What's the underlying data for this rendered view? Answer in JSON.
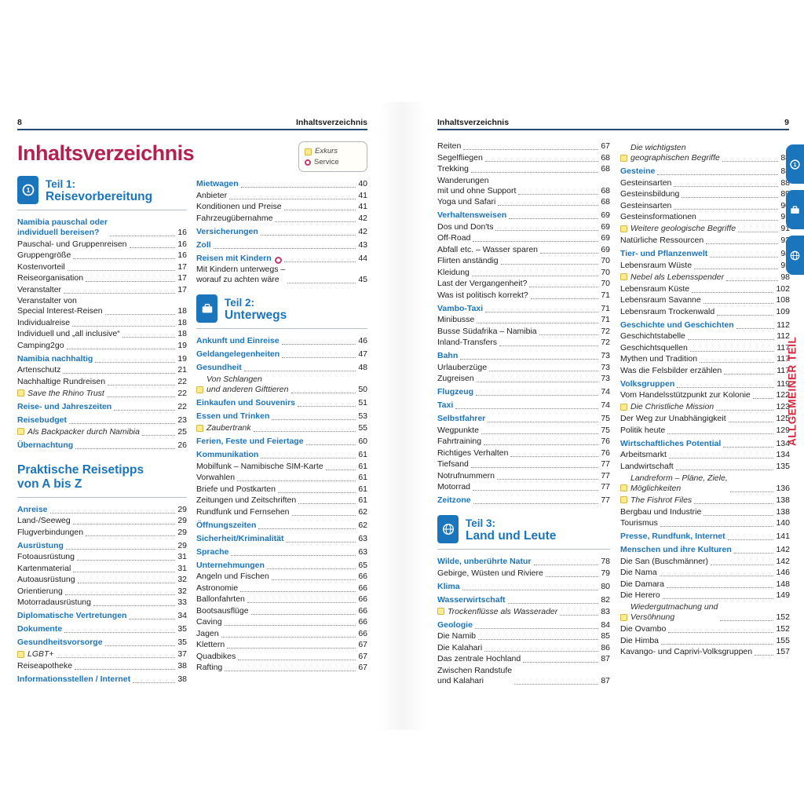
{
  "page_title": "Inhaltsverzeichnis",
  "colors": {
    "accent_blue": "#1b75bc",
    "title_red": "#b5214f",
    "edge_label_red": "#d02c3e",
    "excursus_yellow": "#fceb8f",
    "service_pink": "#c23a6e",
    "rule_navy": "#24486e"
  },
  "header_left": {
    "page_number": "8",
    "running_title": "Inhaltsverzeichnis"
  },
  "header_right": {
    "running_title": "Inhaltsverzeichnis",
    "page_number": "9"
  },
  "legend": {
    "exkurs_label": "Exkurs",
    "service_label": "Service"
  },
  "edge": {
    "vertical_label": "ALLGEMEINER TEIL",
    "tabs": [
      "part1-circle-1-icon",
      "part2-suitcase-icon",
      "part3-globe-icon"
    ]
  },
  "columns": {
    "left1": [
      {
        "type": "part",
        "icon": "circle-1",
        "label": "Teil 1:",
        "name": "Reisevorbereitung"
      },
      {
        "type": "head",
        "text": "Namibia pauschal oder\nindividuell bereisen?",
        "page": "16"
      },
      {
        "type": "sub",
        "text": "Pauschal- und Gruppenreisen",
        "page": "16"
      },
      {
        "type": "sub",
        "text": "Gruppengröße",
        "page": "16"
      },
      {
        "type": "sub",
        "text": "Kostenvorteil",
        "page": "17"
      },
      {
        "type": "sub",
        "text": "Reiseorganisation",
        "page": "17"
      },
      {
        "type": "sub",
        "text": "Veranstalter",
        "page": "17"
      },
      {
        "type": "sub",
        "text": "Veranstalter von\nSpecial Interest-Reisen",
        "page": "18"
      },
      {
        "type": "sub",
        "text": "Individualreise",
        "page": "18"
      },
      {
        "type": "sub",
        "text": "Individuell und „all inclusive“",
        "page": "18"
      },
      {
        "type": "sub",
        "text": "Camping2go",
        "page": "19"
      },
      {
        "type": "head",
        "text": "Namibia nachhaltig",
        "page": "19"
      },
      {
        "type": "sub",
        "text": "Artenschutz",
        "page": "21"
      },
      {
        "type": "sub",
        "text": "Nachhaltige Rundreisen",
        "page": "22"
      },
      {
        "type": "exk",
        "text": "Save the Rhino Trust",
        "page": "22"
      },
      {
        "type": "head",
        "text": "Reise- und Jahreszeiten",
        "page": "22"
      },
      {
        "type": "head",
        "text": "Reisebudget",
        "page": "23"
      },
      {
        "type": "exk",
        "text": "Als Backpacker durch Namibia",
        "page": "25"
      },
      {
        "type": "head",
        "text": "Übernachtung",
        "page": "26"
      },
      {
        "type": "section",
        "text": "Praktische Reisetipps\nvon A bis Z"
      },
      {
        "type": "head",
        "text": "Anreise",
        "page": "29"
      },
      {
        "type": "sub",
        "text": "Land-/Seeweg",
        "page": "29"
      },
      {
        "type": "sub",
        "text": "Flugverbindungen",
        "page": "29"
      },
      {
        "type": "head",
        "text": "Ausrüstung",
        "page": "29"
      },
      {
        "type": "sub",
        "text": "Fotoausrüstung",
        "page": "31"
      },
      {
        "type": "sub",
        "text": "Kartenmaterial",
        "page": "31"
      },
      {
        "type": "sub",
        "text": "Autoausrüstung",
        "page": "32"
      },
      {
        "type": "sub",
        "text": "Orientierung",
        "page": "32"
      },
      {
        "type": "sub",
        "text": "Motorradausrüstung",
        "page": "33"
      },
      {
        "type": "head",
        "text": "Diplomatische Vertretungen",
        "page": "34"
      },
      {
        "type": "head",
        "text": "Dokumente",
        "page": "35"
      },
      {
        "type": "head",
        "text": "Gesundheitsvorsorge",
        "page": "35"
      },
      {
        "type": "exk",
        "text": "LGBT+",
        "page": "37"
      },
      {
        "type": "sub",
        "text": "Reiseapotheke",
        "page": "38"
      },
      {
        "type": "head",
        "text": "Informationsstellen / Internet",
        "page": "38"
      }
    ],
    "left2": [
      {
        "type": "legend"
      },
      {
        "type": "head",
        "text": "Mietwagen",
        "page": "40"
      },
      {
        "type": "sub",
        "text": "Anbieter",
        "page": "41"
      },
      {
        "type": "sub",
        "text": "Konditionen und Preise",
        "page": "41"
      },
      {
        "type": "sub",
        "text": "Fahrzeugübernahme",
        "page": "42"
      },
      {
        "type": "head",
        "text": "Versicherungen",
        "page": "42"
      },
      {
        "type": "head",
        "text": "Zoll",
        "page": "43"
      },
      {
        "type": "head",
        "text": "Reisen mit Kindern",
        "page": "44",
        "icon": "service"
      },
      {
        "type": "sub",
        "text": "Mit Kindern unterwegs –\nworauf zu achten wäre",
        "page": "45"
      },
      {
        "type": "part",
        "icon": "suitcase",
        "label": "Teil 2:",
        "name": "Unterwegs"
      },
      {
        "type": "head",
        "text": "Ankunft und Einreise",
        "page": "46"
      },
      {
        "type": "head",
        "text": "Geldangelegenheiten",
        "page": "47"
      },
      {
        "type": "head",
        "text": "Gesundheit",
        "page": "48"
      },
      {
        "type": "exk",
        "text": "Von Schlangen\nund anderen Gifttieren",
        "page": "50"
      },
      {
        "type": "head",
        "text": "Einkaufen und Souvenirs",
        "page": "51"
      },
      {
        "type": "head",
        "text": "Essen und Trinken",
        "page": "53"
      },
      {
        "type": "exk",
        "text": "Zaubertrank",
        "page": "55"
      },
      {
        "type": "head",
        "text": "Ferien, Feste und Feiertage",
        "page": "60"
      },
      {
        "type": "head",
        "text": "Kommunikation",
        "page": "61"
      },
      {
        "type": "sub",
        "text": "Mobilfunk – Namibische SIM-Karte",
        "page": "61"
      },
      {
        "type": "sub",
        "text": "Vorwahlen",
        "page": "61"
      },
      {
        "type": "sub",
        "text": "Briefe und Postkarten",
        "page": "61"
      },
      {
        "type": "sub",
        "text": "Zeitungen und Zeitschriften",
        "page": "61"
      },
      {
        "type": "sub",
        "text": "Rundfunk und Fernsehen",
        "page": "62"
      },
      {
        "type": "head",
        "text": "Öffnungszeiten",
        "page": "62"
      },
      {
        "type": "head",
        "text": "Sicherheit/Kriminalität",
        "page": "63"
      },
      {
        "type": "head",
        "text": "Sprache",
        "page": "63"
      },
      {
        "type": "head",
        "text": "Unternehmungen",
        "page": "65"
      },
      {
        "type": "sub",
        "text": "Angeln und Fischen",
        "page": "66"
      },
      {
        "type": "sub",
        "text": "Astronomie",
        "page": "66"
      },
      {
        "type": "sub",
        "text": "Ballonfahrten",
        "page": "66"
      },
      {
        "type": "sub",
        "text": "Bootsausflüge",
        "page": "66"
      },
      {
        "type": "sub",
        "text": "Caving",
        "page": "66"
      },
      {
        "type": "sub",
        "text": "Jagen",
        "page": "66"
      },
      {
        "type": "sub",
        "text": "Klettern",
        "page": "67"
      },
      {
        "type": "sub",
        "text": "Quadbikes",
        "page": "67"
      },
      {
        "type": "sub",
        "text": "Rafting",
        "page": "67"
      }
    ],
    "right1": [
      {
        "type": "sub",
        "text": "Reiten",
        "page": "67"
      },
      {
        "type": "sub",
        "text": "Segelfliegen",
        "page": "68"
      },
      {
        "type": "sub",
        "text": "Trekking",
        "page": "68"
      },
      {
        "type": "sub",
        "text": "Wanderungen\nmit und ohne Support",
        "page": "68"
      },
      {
        "type": "sub",
        "text": "Yoga und Safari",
        "page": "68"
      },
      {
        "type": "head",
        "text": "Verhaltensweisen",
        "page": "69"
      },
      {
        "type": "sub",
        "text": "Dos und Don'ts",
        "page": "69"
      },
      {
        "type": "sub",
        "text": "Off-Road",
        "page": "69"
      },
      {
        "type": "sub",
        "text": "Abfall etc. – Wasser sparen",
        "page": "69"
      },
      {
        "type": "sub",
        "text": "Flirten anständig",
        "page": "70"
      },
      {
        "type": "sub",
        "text": "Kleidung",
        "page": "70"
      },
      {
        "type": "sub",
        "text": "Last der Vergangenheit?",
        "page": "70"
      },
      {
        "type": "sub",
        "text": "Was ist politisch korrekt?",
        "page": "71"
      },
      {
        "type": "head",
        "text": "Vambo-Taxi",
        "page": "71"
      },
      {
        "type": "sub",
        "text": "Minibusse",
        "page": "71"
      },
      {
        "type": "sub",
        "text": "Busse Südafrika – Namibia",
        "page": "72"
      },
      {
        "type": "sub",
        "text": "Inland-Transfers",
        "page": "72"
      },
      {
        "type": "head",
        "text": "Bahn",
        "page": "73"
      },
      {
        "type": "sub",
        "text": "Urlauberzüge",
        "page": "73"
      },
      {
        "type": "sub",
        "text": "Zugreisen",
        "page": "73"
      },
      {
        "type": "head",
        "text": "Flugzeug",
        "page": "74"
      },
      {
        "type": "head",
        "text": "Taxi",
        "page": "74"
      },
      {
        "type": "head",
        "text": "Selbstfahrer",
        "page": "75"
      },
      {
        "type": "sub",
        "text": "Wegpunkte",
        "page": "75"
      },
      {
        "type": "sub",
        "text": "Fahrtraining",
        "page": "76"
      },
      {
        "type": "sub",
        "text": "Richtiges Verhalten",
        "page": "76"
      },
      {
        "type": "sub",
        "text": "Tiefsand",
        "page": "77"
      },
      {
        "type": "sub",
        "text": "Notrufnummern",
        "page": "77"
      },
      {
        "type": "sub",
        "text": "Motorrad",
        "page": "77"
      },
      {
        "type": "head",
        "text": "Zeitzone",
        "page": "77"
      },
      {
        "type": "part",
        "icon": "globe",
        "label": "Teil 3:",
        "name": "Land und Leute"
      },
      {
        "type": "head",
        "text": "Wilde, unberührte Natur",
        "page": "78"
      },
      {
        "type": "sub",
        "text": "Gebirge, Wüsten und Riviere",
        "page": "79"
      },
      {
        "type": "head",
        "text": "Klima",
        "page": "80"
      },
      {
        "type": "head",
        "text": "Wasserwirtschaft",
        "page": "82"
      },
      {
        "type": "exk",
        "text": "Trockenflüsse als Wasserader",
        "page": "83"
      },
      {
        "type": "head",
        "text": "Geologie",
        "page": "84"
      },
      {
        "type": "sub",
        "text": "Die Namib",
        "page": "85"
      },
      {
        "type": "sub",
        "text": "Die Kalahari",
        "page": "86"
      },
      {
        "type": "sub",
        "text": "Das zentrale Hochland",
        "page": "87"
      },
      {
        "type": "sub",
        "text": "Zwischen Randstufe\nund Kalahari",
        "page": "87"
      }
    ],
    "right2": [
      {
        "type": "exk",
        "text": "Die wichtigsten\ngeographischen Begriffe",
        "page": "88"
      },
      {
        "type": "head",
        "text": "Gesteine",
        "page": "88"
      },
      {
        "type": "sub",
        "text": "Gesteinsarten",
        "page": "88"
      },
      {
        "type": "sub",
        "text": "Gesteinsbildung",
        "page": "89"
      },
      {
        "type": "sub",
        "text": "Gesteinsarten",
        "page": "90"
      },
      {
        "type": "sub",
        "text": "Gesteinsformationen",
        "page": "91"
      },
      {
        "type": "exk",
        "text": "Weitere geologische Begriffe",
        "page": "91"
      },
      {
        "type": "sub",
        "text": "Natürliche Ressourcen",
        "page": "92"
      },
      {
        "type": "head",
        "text": "Tier- und Pflanzenwelt",
        "page": "94"
      },
      {
        "type": "sub",
        "text": "Lebensraum Wüste",
        "page": "95"
      },
      {
        "type": "exk",
        "text": "Nebel als Lebensspender",
        "page": "98"
      },
      {
        "type": "sub",
        "text": "Lebensraum Küste",
        "page": "102"
      },
      {
        "type": "sub",
        "text": "Lebensraum Savanne",
        "page": "108"
      },
      {
        "type": "sub",
        "text": "Lebensraum Trockenwald",
        "page": "109"
      },
      {
        "type": "head",
        "text": "Geschichte und Geschichten",
        "page": "112"
      },
      {
        "type": "sub",
        "text": "Geschichtstabelle",
        "page": "112"
      },
      {
        "type": "sub",
        "text": "Geschichtsquellen",
        "page": "117"
      },
      {
        "type": "sub",
        "text": "Mythen und Tradition",
        "page": "117"
      },
      {
        "type": "sub",
        "text": "Was die Felsbilder erzählen",
        "page": "117"
      },
      {
        "type": "head",
        "text": "Volksgruppen",
        "page": "119"
      },
      {
        "type": "sub",
        "text": "Vom Handelsstützpunkt zur Kolonie",
        "page": "122"
      },
      {
        "type": "exk",
        "text": "Die Christliche Mission",
        "page": "123"
      },
      {
        "type": "sub",
        "text": "Der Weg zur Unabhängigkeit",
        "page": "125"
      },
      {
        "type": "sub",
        "text": "Politik heute",
        "page": "129"
      },
      {
        "type": "head",
        "text": "Wirtschaftliches Potential",
        "page": "134"
      },
      {
        "type": "sub",
        "text": "Arbeitsmarkt",
        "page": "134"
      },
      {
        "type": "sub",
        "text": "Landwirtschaft",
        "page": "135"
      },
      {
        "type": "exk",
        "text": "Landreform – Pläne, Ziele,\nMöglichkeiten",
        "page": "136"
      },
      {
        "type": "exk",
        "text": "The Fishrot Files",
        "page": "138"
      },
      {
        "type": "sub",
        "text": "Bergbau und Industrie",
        "page": "138"
      },
      {
        "type": "sub",
        "text": "Tourismus",
        "page": "140"
      },
      {
        "type": "head",
        "text": "Presse, Rundfunk, Internet",
        "page": "141"
      },
      {
        "type": "head",
        "text": "Menschen und ihre Kulturen",
        "page": "142"
      },
      {
        "type": "sub",
        "text": "Die San (Buschmänner)",
        "page": "142"
      },
      {
        "type": "sub",
        "text": "Die Nama",
        "page": "146"
      },
      {
        "type": "sub",
        "text": "Die Damara",
        "page": "148"
      },
      {
        "type": "sub",
        "text": "Die Herero",
        "page": "149"
      },
      {
        "type": "exk",
        "text": "Wiedergutmachung und\nVersöhnung",
        "page": "152"
      },
      {
        "type": "sub",
        "text": "Die Ovambo",
        "page": "152"
      },
      {
        "type": "sub",
        "text": "Die Himba",
        "page": "155"
      },
      {
        "type": "sub",
        "text": "Kavango- und Caprivi-Volksgruppen",
        "page": "157"
      }
    ]
  }
}
